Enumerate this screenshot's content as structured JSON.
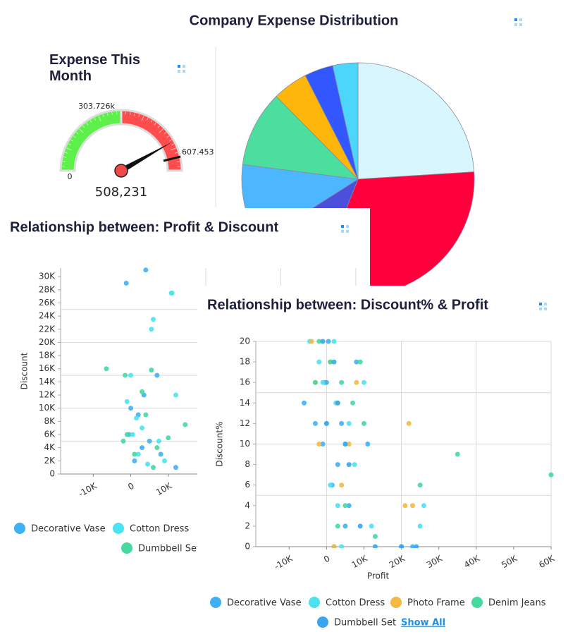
{
  "chart_data": [
    {
      "type": "pie",
      "title": "Company Expense Distribution",
      "values": [
        24,
        32,
        10,
        11,
        10.6,
        4.9,
        4,
        3.5
      ],
      "colors": [
        "#d8f6fd",
        "#ff003c",
        "#4a4fdc",
        "#4cb6ff",
        "#4cde9f",
        "#ffb60a",
        "#3357ff",
        "#4dd6fb"
      ]
    },
    {
      "type": "gauge",
      "title": "Expense This Month",
      "min": 0,
      "mid": {
        "value": 303726,
        "label": "303.726k"
      },
      "max": {
        "value": 607453,
        "label": "607.453"
      },
      "value": 508231,
      "value_label": "508,231",
      "colors": [
        "#5ef04a",
        "#ff4d4d"
      ]
    },
    {
      "type": "scatter",
      "title": "Relationship between: Profit & Discount",
      "y_label": "Discount",
      "xlim": [
        -18700,
        60000
      ],
      "ylim": [
        0,
        31300
      ],
      "xticks": [
        {
          "value": -10000,
          "label": "-10K"
        },
        0,
        {
          "value": 10000,
          "label": "10K"
        }
      ],
      "yticks": [
        0,
        {
          "value": 2000,
          "label": "2K"
        },
        {
          "value": 4000,
          "label": "4K"
        },
        {
          "value": 6000,
          "label": "6K"
        },
        {
          "value": 8000,
          "label": "8K"
        },
        {
          "value": 10000,
          "label": "10K"
        },
        {
          "value": 12000,
          "label": "12K"
        },
        {
          "value": 14000,
          "label": "14K"
        },
        {
          "value": 16000,
          "label": "16K"
        },
        {
          "value": 18000,
          "label": "18K"
        },
        {
          "value": 20000,
          "label": "20K"
        },
        {
          "value": 22000,
          "label": "22K"
        },
        {
          "value": 24000,
          "label": "24K"
        },
        {
          "value": 26000,
          "label": "26K"
        },
        {
          "value": 28000,
          "label": "28K"
        },
        {
          "value": 30000,
          "label": "30K"
        }
      ],
      "xgrid": [
        20000,
        40000,
        60000
      ],
      "ygrid": [
        5000,
        10000,
        15000,
        20000,
        25000
      ],
      "series": [
        {
          "name": "Decorative Vase",
          "color": "#3fb0f5",
          "x": [
            4000,
            -1200,
            7000,
            3500,
            2000,
            0,
            -500,
            5000,
            1000,
            8000,
            12000,
            3000
          ],
          "y": [
            31000,
            29000,
            15000,
            12000,
            9000,
            10000,
            6000,
            5000,
            2000,
            3000,
            1000,
            4000
          ]
        },
        {
          "name": "Cotton Dress",
          "color": "#4be3f0",
          "x": [
            11000,
            10800,
            6000,
            5500,
            0,
            -1000,
            1500,
            3000,
            7500,
            2000,
            9000,
            500,
            4500,
            12000
          ],
          "y": [
            27500,
            27500,
            23500,
            22000,
            15000,
            11000,
            8500,
            7000,
            5000,
            3000,
            2000,
            6000,
            1500,
            12000
          ]
        },
        {
          "name": "Dumbbell Set",
          "color": "#45d9a0",
          "x": [
            -6500,
            -1500,
            5500,
            3000,
            14500,
            1000,
            -1000,
            7000,
            10000,
            -2000,
            4000,
            6000
          ],
          "y": [
            16000,
            15000,
            15800,
            12500,
            7500,
            3000,
            6000,
            4000,
            5500,
            5000,
            9000,
            1000
          ]
        }
      ]
    },
    {
      "type": "scatter",
      "title": "Relationship between: Discount% & Profit",
      "x_label": "Profit",
      "y_label": "Discount%",
      "legend_action": "Show All",
      "xlim": [
        -18900,
        60000
      ],
      "ylim": [
        0,
        20
      ],
      "xticks": [
        {
          "value": -10000,
          "label": "-10K"
        },
        0,
        {
          "value": 10000,
          "label": "10K"
        },
        {
          "value": 20000,
          "label": "20K"
        },
        {
          "value": 30000,
          "label": "30K"
        },
        {
          "value": 40000,
          "label": "40K"
        },
        {
          "value": 50000,
          "label": "50K"
        },
        {
          "value": 60000,
          "label": "60K"
        }
      ],
      "yticks": [
        0,
        2,
        4,
        6,
        8,
        10,
        12,
        14,
        16,
        18,
        20
      ],
      "xgrid": [
        0,
        20000,
        40000,
        60000
      ],
      "ygrid": [
        5,
        10,
        15,
        20
      ],
      "series": [
        {
          "name": "Decorative Vase",
          "color": "#3fb0f5",
          "x": [
            -6000,
            -1000,
            2000,
            4000,
            8000,
            1500,
            -500,
            6000,
            3000,
            20000,
            23000,
            500,
            5000,
            11000,
            -3000,
            0
          ],
          "y": [
            14,
            10,
            0,
            12,
            18,
            6,
            16,
            4,
            8,
            0,
            0,
            20,
            2,
            10,
            12,
            16
          ]
        },
        {
          "name": "Cotton Dress",
          "color": "#4be3f0",
          "x": [
            -4500,
            -2000,
            0,
            2500,
            5000,
            7500,
            10000,
            1000,
            3000,
            12000,
            26000,
            25000,
            4000,
            -1000,
            6000,
            2000
          ],
          "y": [
            20,
            18,
            12,
            14,
            10,
            8,
            16,
            6,
            4,
            2,
            4,
            2,
            0,
            16,
            12,
            20
          ]
        },
        {
          "name": "Photo Frame",
          "color": "#f5b942",
          "x": [
            -4000,
            -3000,
            1000,
            3000,
            6000,
            22000,
            21000,
            23000,
            4000,
            -2000,
            2000,
            8000
          ],
          "y": [
            20,
            16,
            18,
            14,
            10,
            12,
            4,
            4,
            6,
            10,
            0,
            16
          ]
        },
        {
          "name": "Denim Jeans",
          "color": "#45d9a0",
          "x": [
            -2000,
            1000,
            4000,
            7000,
            9000,
            10000,
            35000,
            60000,
            25000,
            13000,
            3000,
            -3000,
            5000
          ],
          "y": [
            20,
            18,
            16,
            14,
            18,
            12,
            9,
            7,
            6,
            1,
            2,
            16,
            4
          ]
        },
        {
          "name": "Dumbbell Set",
          "color": "#3aa5ee",
          "x": [
            -1000,
            3000,
            6000,
            9000,
            20000,
            24000,
            2000,
            5000,
            13000,
            0
          ],
          "y": [
            20,
            14,
            8,
            2,
            0,
            0,
            18,
            10,
            0,
            12
          ]
        }
      ]
    }
  ]
}
